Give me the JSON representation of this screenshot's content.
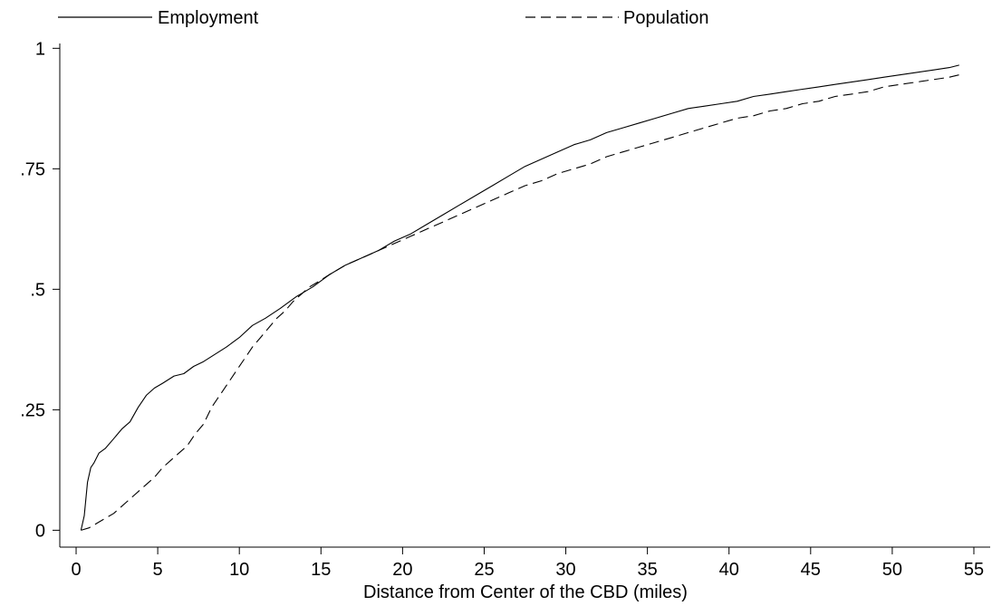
{
  "chart_data": {
    "type": "line",
    "xlabel": "Distance from Center of the CBD (miles)",
    "ylabel": "",
    "xlim": [
      -1,
      56
    ],
    "ylim": [
      -0.035,
      1.01
    ],
    "x_ticks": [
      0,
      5,
      10,
      15,
      20,
      25,
      30,
      35,
      40,
      45,
      50,
      55
    ],
    "x_tick_labels": [
      "0",
      "5",
      "10",
      "15",
      "20",
      "25",
      "30",
      "35",
      "40",
      "45",
      "50",
      "55"
    ],
    "y_ticks": [
      0,
      0.25,
      0.5,
      0.75,
      1
    ],
    "y_tick_labels": [
      "0",
      ".25",
      ".5",
      ".75",
      "1"
    ],
    "grid": false,
    "legend_position": "top",
    "series": [
      {
        "name": "Employment",
        "style": "solid",
        "color": "#000000",
        "x": [
          0.3,
          0.5,
          0.7,
          0.9,
          1.1,
          1.4,
          1.8,
          2.3,
          2.8,
          3.3,
          3.8,
          4.3,
          4.8,
          5.3,
          6.0,
          6.6,
          7.2,
          7.8,
          8.5,
          9.2,
          10.0,
          10.8,
          11.6,
          12.5,
          13.5,
          14.5,
          15.5,
          16.5,
          17.5,
          18.5,
          19.5,
          20.5,
          21.5,
          22.5,
          23.5,
          24.5,
          25.5,
          26.5,
          27.5,
          28.5,
          29.5,
          30.5,
          31.5,
          32.5,
          33.5,
          34.5,
          35.5,
          36.5,
          37.5,
          38.5,
          39.5,
          40.5,
          41.5,
          42.5,
          43.5,
          44.5,
          45.5,
          46.5,
          47.5,
          48.5,
          49.5,
          50.5,
          51.5,
          52.5,
          53.5,
          54.1
        ],
        "values": [
          0.0,
          0.03,
          0.1,
          0.13,
          0.14,
          0.16,
          0.17,
          0.19,
          0.21,
          0.225,
          0.255,
          0.28,
          0.295,
          0.305,
          0.32,
          0.325,
          0.34,
          0.35,
          0.365,
          0.38,
          0.4,
          0.425,
          0.44,
          0.46,
          0.485,
          0.505,
          0.53,
          0.55,
          0.565,
          0.58,
          0.6,
          0.615,
          0.635,
          0.655,
          0.675,
          0.695,
          0.715,
          0.735,
          0.755,
          0.77,
          0.785,
          0.8,
          0.81,
          0.825,
          0.835,
          0.845,
          0.855,
          0.865,
          0.875,
          0.88,
          0.885,
          0.89,
          0.9,
          0.905,
          0.91,
          0.915,
          0.92,
          0.925,
          0.93,
          0.935,
          0.94,
          0.945,
          0.95,
          0.955,
          0.96,
          0.965
        ]
      },
      {
        "name": "Population",
        "style": "dashed",
        "color": "#000000",
        "x": [
          0.3,
          0.8,
          1.3,
          1.8,
          2.3,
          2.8,
          3.3,
          3.8,
          4.3,
          4.8,
          5.3,
          5.8,
          6.3,
          6.8,
          7.3,
          7.8,
          8.3,
          8.8,
          9.3,
          9.8,
          10.3,
          10.8,
          11.3,
          11.8,
          12.3,
          12.8,
          13.3,
          13.8,
          14.3,
          14.8,
          15.5,
          16.5,
          17.5,
          18.5,
          19.5,
          20.5,
          21.5,
          22.5,
          23.5,
          24.5,
          25.5,
          26.5,
          27.5,
          28.5,
          29.5,
          30.5,
          31.5,
          32.5,
          33.5,
          34.5,
          35.5,
          36.5,
          37.5,
          38.5,
          39.5,
          40.5,
          41.5,
          42.5,
          43.5,
          44.5,
          45.5,
          46.5,
          47.5,
          48.5,
          49.5,
          50.5,
          51.5,
          52.5,
          53.5,
          54.1
        ],
        "values": [
          0.0,
          0.005,
          0.015,
          0.025,
          0.035,
          0.05,
          0.065,
          0.08,
          0.095,
          0.11,
          0.13,
          0.145,
          0.16,
          0.175,
          0.2,
          0.22,
          0.255,
          0.28,
          0.305,
          0.33,
          0.355,
          0.38,
          0.4,
          0.42,
          0.44,
          0.455,
          0.475,
          0.49,
          0.505,
          0.515,
          0.53,
          0.55,
          0.565,
          0.58,
          0.595,
          0.61,
          0.625,
          0.64,
          0.655,
          0.67,
          0.685,
          0.7,
          0.715,
          0.725,
          0.74,
          0.75,
          0.76,
          0.775,
          0.785,
          0.795,
          0.805,
          0.815,
          0.825,
          0.835,
          0.845,
          0.855,
          0.86,
          0.87,
          0.875,
          0.885,
          0.89,
          0.9,
          0.905,
          0.91,
          0.92,
          0.925,
          0.93,
          0.935,
          0.94,
          0.945
        ]
      }
    ]
  }
}
